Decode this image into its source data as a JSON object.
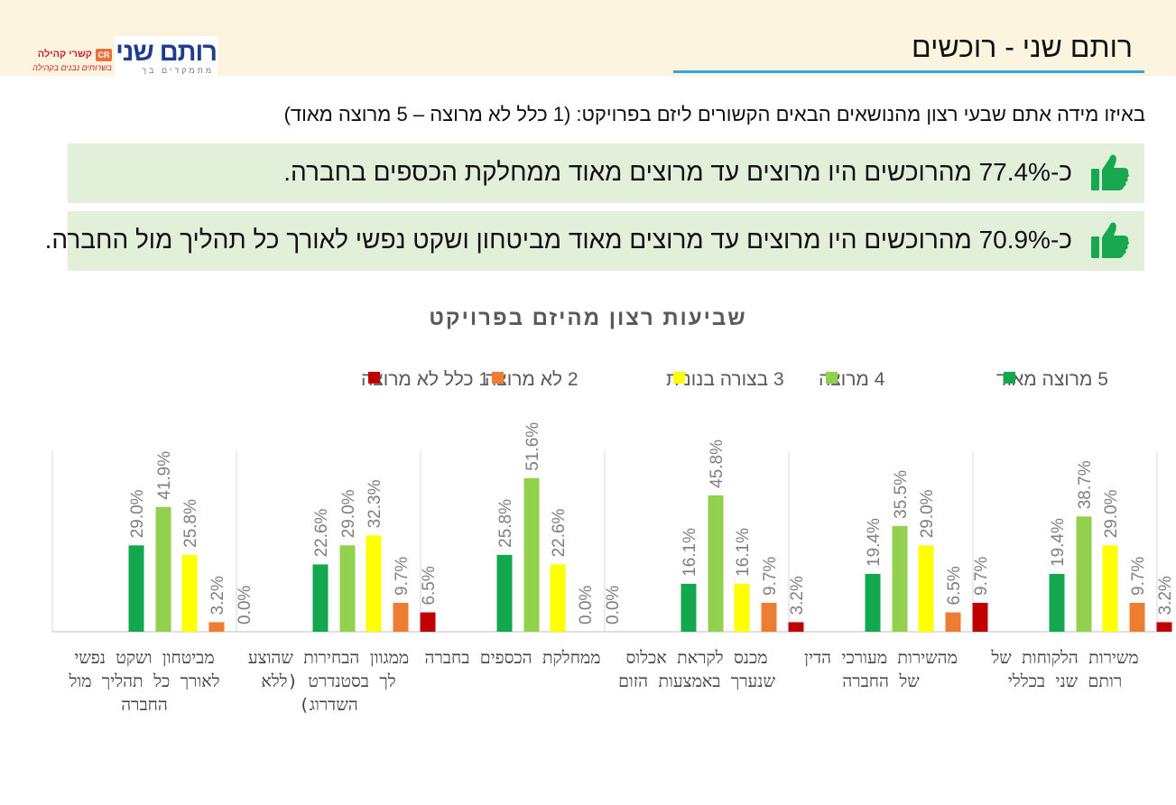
{
  "header": {
    "title": "רותם שני - רוכשים",
    "logo_main": "רותם שני",
    "logo_sub": "מתמקדים בך",
    "partner_badge": "CR",
    "partner_name": "קשרי קהילה",
    "partner_tagline": "בשרותים נבנים בקהילה"
  },
  "question": "באיזו מידה אתם שבעי רצון מהנושאים הבאים הקשורים ליזם בפרויקט:  (1 כלל לא מרוצה – 5 מרוצה מאוד)",
  "highlights": [
    {
      "text": "כ-77.4% מהרוכשים היו מרוצים עד מרוצים מאוד ממחלקת הכספים בחברה.",
      "icon": "thumbs-up-icon"
    },
    {
      "text": "כ-70.9% מהרוכשים היו מרוצים עד מרוצים מאוד מביטחון ושקט נפשי לאורך כל תהליך מול החברה.",
      "icon": "thumbs-up-icon"
    }
  ],
  "chart_data": {
    "type": "bar",
    "title": "שביעות רצון מהיזם בפרויקט",
    "legend_position": "top",
    "grid": false,
    "categories": [
      "משירות הלקוחות של רותם שני בכללי",
      "מהשירות מעורכי הדין של החברה",
      "מכנס לקראת אכלוס שנערך באמצעות הזום",
      "ממחלקת הכספים בחברה",
      "ממגוון הבחירות שהוצע לך בסטנדרט (ללא השדרוג)",
      "מביטחון ושקט נפשי לאורך כל תהליך מול החברה"
    ],
    "series": [
      {
        "name": "5 מרוצה מאוד",
        "color": "#13a84e",
        "values": [
          19.4,
          19.4,
          16.1,
          25.8,
          22.6,
          29.0
        ],
        "labels": [
          "19.4%",
          "19.4%",
          "16.1%",
          "25.8%",
          "22.6%",
          "29.0%"
        ]
      },
      {
        "name": "4 מרוצה",
        "color": "#92d050",
        "values": [
          38.7,
          35.5,
          45.8,
          51.6,
          29.0,
          41.9
        ],
        "labels": [
          "38.7%",
          "35.5%",
          "45.8%",
          "51.6%",
          "29.0%",
          "41.9%"
        ]
      },
      {
        "name": "3 בצורה בנונית",
        "color": "#ffff00",
        "values": [
          29.0,
          29.0,
          16.1,
          22.6,
          32.3,
          25.8
        ],
        "labels": [
          "29.0%",
          "29.0%",
          "16.1%",
          "22.6%",
          "32.3%",
          "25.8%"
        ]
      },
      {
        "name": "2 לא מרוצה",
        "color": "#ed7d31",
        "values": [
          9.7,
          6.5,
          9.7,
          0.0,
          9.7,
          3.2
        ],
        "labels": [
          "9.7%",
          "6.5%",
          "9.7%",
          "0.0%",
          "9.7%",
          "3.2%"
        ]
      },
      {
        "name": "1 כלל לא מרוצה",
        "color": "#c00000",
        "values": [
          3.2,
          9.7,
          3.2,
          0.0,
          6.5,
          0.0
        ],
        "labels": [
          "3.2%",
          "9.7%",
          "3.2%",
          "0.0%",
          "6.5%",
          "0.0%"
        ]
      }
    ],
    "ylim": [
      0,
      60
    ]
  }
}
